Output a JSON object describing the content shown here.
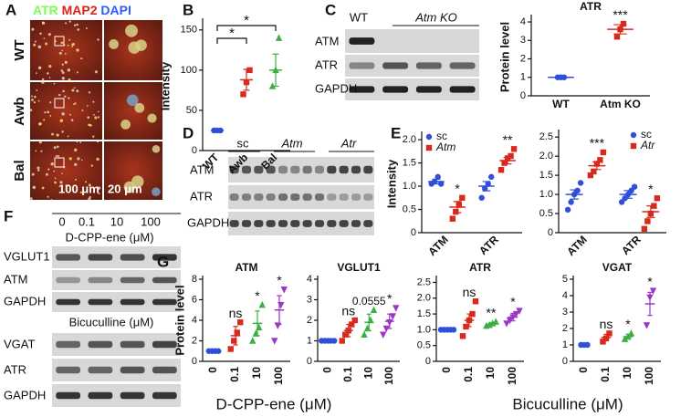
{
  "figure": {
    "panel_labels": [
      "A",
      "B",
      "C",
      "D",
      "E",
      "F",
      "G"
    ],
    "a": {
      "stain": [
        {
          "text": "ATR",
          "color": "#7CFC55"
        },
        {
          "text": "/",
          "color": "#ffffff"
        },
        {
          "text": "MAP2",
          "color": "#e0201b"
        },
        {
          "text": "/",
          "color": "#ffffff"
        },
        {
          "text": "DAPI",
          "color": "#2f5bff"
        }
      ],
      "rows": [
        "WT",
        "Awb",
        "Bal"
      ],
      "scale_bars": [
        "100 μm",
        "20 μm"
      ]
    },
    "c_blot": {
      "columns": [
        "WT",
        "Atm KO"
      ],
      "rows": [
        "ATM",
        "ATR",
        "GAPDH"
      ]
    },
    "d_blot": {
      "groups": [
        "sc",
        "Atm",
        "Atr"
      ],
      "rows": [
        "ATM",
        "ATR",
        "GAPDH"
      ]
    },
    "f_blot": {
      "doses": [
        "0",
        "0.1",
        "10",
        "100"
      ],
      "treatment_1": "D-CPP-ene (μM)",
      "rows_1": [
        "VGLUT1",
        "ATM",
        "GAPDH"
      ],
      "treatment_2": "Bicuculline (μM)",
      "rows_2": [
        "VGAT",
        "ATR",
        "GAPDH"
      ]
    },
    "g_xlabels": [
      "D-CPP-ene (μM)",
      "Bicuculline (μM)"
    ]
  },
  "chart_data": [
    {
      "type": "dot",
      "ylabel": "Intensity",
      "categories": [
        "WT",
        "Awb",
        "Bal"
      ],
      "ylim": [
        0,
        160
      ],
      "yticks": [
        0,
        50,
        100,
        150
      ],
      "colors": [
        "#2f4fd8",
        "#d9291c",
        "#3cb043"
      ],
      "markers": [
        "circle",
        "square",
        "triangle"
      ],
      "series": [
        {
          "points": [
            [
              25,
              25,
              25
            ],
            [
              70,
              85,
              100
            ],
            [
              80,
              100,
              140
            ]
          ],
          "means": [
            25,
            88,
            100
          ],
          "errors": [
            1,
            13,
            20
          ]
        }
      ],
      "comparisons": [
        {
          "from": "WT",
          "to": "Awb",
          "label": "*"
        },
        {
          "from": "WT",
          "to": "Bal",
          "label": "*"
        }
      ]
    },
    {
      "type": "dot",
      "title": "ATR",
      "ylabel": "Protein level",
      "categories": [
        "WT",
        "Atm KO"
      ],
      "ylim": [
        0,
        4.2
      ],
      "yticks": [
        0,
        1,
        2,
        3,
        4
      ],
      "colors": [
        "#2f4fd8",
        "#d9291c"
      ],
      "markers": [
        "circle",
        "square"
      ],
      "series": [
        {
          "points": [
            [
              1,
              1,
              1
            ],
            [
              3.2,
              3.6,
              3.9
            ]
          ],
          "means": [
            1,
            3.6
          ],
          "errors": [
            0,
            0.25
          ],
          "labels": [
            null,
            "***"
          ]
        }
      ]
    },
    {
      "type": "dot",
      "ylabel": "Intensity",
      "categories": [
        "ATM",
        "ATR"
      ],
      "ylim": [
        0,
        2.1
      ],
      "yticks": [
        0,
        0.5,
        {
          "value": 1,
          "label": "1.0"
        },
        1.5,
        {
          "value": 2,
          "label": "2.0"
        }
      ],
      "legend": "upper left",
      "series": [
        {
          "name": "sc",
          "color": "#2f4fd8",
          "marker": "circle",
          "points": [
            [
              1.05,
              1.1,
              1.2,
              1.05
            ],
            [
              0.75,
              0.95,
              1.05,
              1.2
            ]
          ],
          "means": [
            1.1,
            1.0
          ],
          "errors": [
            0.05,
            0.1
          ],
          "labels": [
            null,
            null
          ]
        },
        {
          "name": "Atm",
          "color": "#d9291c",
          "marker": "square",
          "points": [
            [
              0.3,
              0.45,
              0.6,
              0.75
            ],
            [
              1.35,
              1.5,
              1.6,
              1.65,
              1.8
            ]
          ],
          "means": [
            0.55,
            1.55
          ],
          "errors": [
            0.12,
            0.07
          ],
          "labels": [
            "*",
            "**"
          ]
        }
      ]
    },
    {
      "type": "dot",
      "categories": [
        "ATM",
        "ATR"
      ],
      "ylim": [
        0,
        2.6
      ],
      "yticks": [
        0,
        0.5,
        {
          "value": 1,
          "label": "1.0"
        },
        1.5,
        {
          "value": 2,
          "label": "2.0"
        },
        2.5
      ],
      "legend": "upper right",
      "series": [
        {
          "name": "sc",
          "color": "#2f4fd8",
          "marker": "circle",
          "points": [
            [
              0.6,
              0.8,
              1.0,
              1.1,
              1.3
            ],
            [
              0.8,
              0.9,
              1.0,
              1.1,
              1.2
            ]
          ],
          "means": [
            1.0,
            1.0
          ],
          "errors": [
            0.12,
            0.1
          ],
          "labels": [
            null,
            null
          ]
        },
        {
          "name": "Atr",
          "color": "#d9291c",
          "marker": "square",
          "points": [
            [
              1.5,
              1.6,
              1.8,
              1.9,
              2.1
            ],
            [
              0.1,
              0.3,
              0.5,
              0.7,
              0.9
            ]
          ],
          "means": [
            1.75,
            0.55
          ],
          "errors": [
            0.1,
            0.15
          ],
          "labels": [
            "***",
            "*"
          ]
        }
      ]
    },
    {
      "type": "dot",
      "title": "ATM",
      "ylabel": "Protein level",
      "categories": [
        "0",
        "0.1",
        "10",
        "100"
      ],
      "ylim": [
        0,
        8
      ],
      "yticks": [
        0,
        2,
        4,
        6,
        8
      ],
      "colors": [
        "#2f4fd8",
        "#d9291c",
        "#3cb043",
        "#9b36c9"
      ],
      "markers": [
        "circle",
        "square",
        "triangle",
        "triangle-down"
      ],
      "series": [
        {
          "points": [
            [
              1,
              1,
              1,
              1
            ],
            [
              1.2,
              2,
              2.8,
              3.8
            ],
            [
              2,
              2.7,
              3.3,
              5.5
            ],
            [
              2,
              3.5,
              5.5,
              7
            ]
          ],
          "means": [
            1,
            2.5,
            3.7,
            5
          ],
          "errors": [
            0,
            0.9,
            1.2,
            1.4
          ],
          "labels": [
            null,
            "ns",
            "*",
            "*"
          ]
        }
      ]
    },
    {
      "type": "dot",
      "title": "VGLUT1",
      "categories": [
        "0",
        "0.1",
        "10",
        "100"
      ],
      "ylim": [
        0,
        4
      ],
      "yticks": [
        0,
        1,
        2,
        3,
        4
      ],
      "colors": [
        "#2f4fd8",
        "#d9291c",
        "#3cb043",
        "#9b36c9"
      ],
      "markers": [
        "circle",
        "square",
        "triangle",
        "triangle-down"
      ],
      "series": [
        {
          "points": [
            [
              1,
              1,
              1,
              1,
              1
            ],
            [
              1,
              1.3,
              1.5,
              1.8,
              2
            ],
            [
              1.3,
              1.6,
              2,
              2.5
            ],
            [
              1.3,
              1.6,
              1.9,
              2.2,
              2.6
            ]
          ],
          "means": [
            1,
            1.5,
            1.9,
            1.95
          ],
          "errors": [
            0,
            0.3,
            0.4,
            0.35
          ],
          "labels": [
            null,
            "ns",
            "0.0555",
            "*"
          ]
        }
      ]
    },
    {
      "type": "dot",
      "title": "ATR",
      "categories": [
        "0",
        "0.1",
        "10",
        "100"
      ],
      "ylim": [
        0,
        2.6
      ],
      "yticks": [
        0,
        0.5,
        {
          "value": 1,
          "label": "1.0"
        },
        1.5,
        {
          "value": 2,
          "label": "2.0"
        },
        2.5
      ],
      "colors": [
        "#2f4fd8",
        "#d9291c",
        "#3cb043",
        "#9b36c9"
      ],
      "markers": [
        "circle",
        "square",
        "triangle",
        "triangle-down"
      ],
      "series": [
        {
          "points": [
            [
              1,
              1,
              1,
              1,
              1
            ],
            [
              0.8,
              1.1,
              1.3,
              1.5,
              1.9
            ],
            [
              1.12,
              1.15,
              1.2,
              1.25
            ],
            [
              1.2,
              1.3,
              1.4,
              1.5,
              1.6
            ]
          ],
          "means": [
            1,
            1.3,
            1.18,
            1.4
          ],
          "errors": [
            0,
            0.2,
            0.04,
            0.12
          ],
          "labels": [
            null,
            "ns",
            "**",
            "*"
          ]
        }
      ]
    },
    {
      "type": "dot",
      "title": "VGAT",
      "categories": [
        "0",
        "0.1",
        "10",
        "100"
      ],
      "ylim": [
        0,
        5
      ],
      "yticks": [
        0,
        1,
        2,
        3,
        4,
        5
      ],
      "colors": [
        "#2f4fd8",
        "#d9291c",
        "#3cb043",
        "#9b36c9"
      ],
      "markers": [
        "circle",
        "square",
        "triangle",
        "triangle-down"
      ],
      "series": [
        {
          "points": [
            [
              1,
              1,
              1
            ],
            [
              1.2,
              1.4,
              1.7
            ],
            [
              1.35,
              1.5,
              1.7
            ],
            [
              2.2,
              3.9,
              4.3
            ]
          ],
          "means": [
            1,
            1.45,
            1.5,
            3.5
          ],
          "errors": [
            0,
            0.2,
            0.15,
            0.7
          ],
          "labels": [
            null,
            "ns",
            "*",
            "*"
          ]
        }
      ]
    }
  ]
}
